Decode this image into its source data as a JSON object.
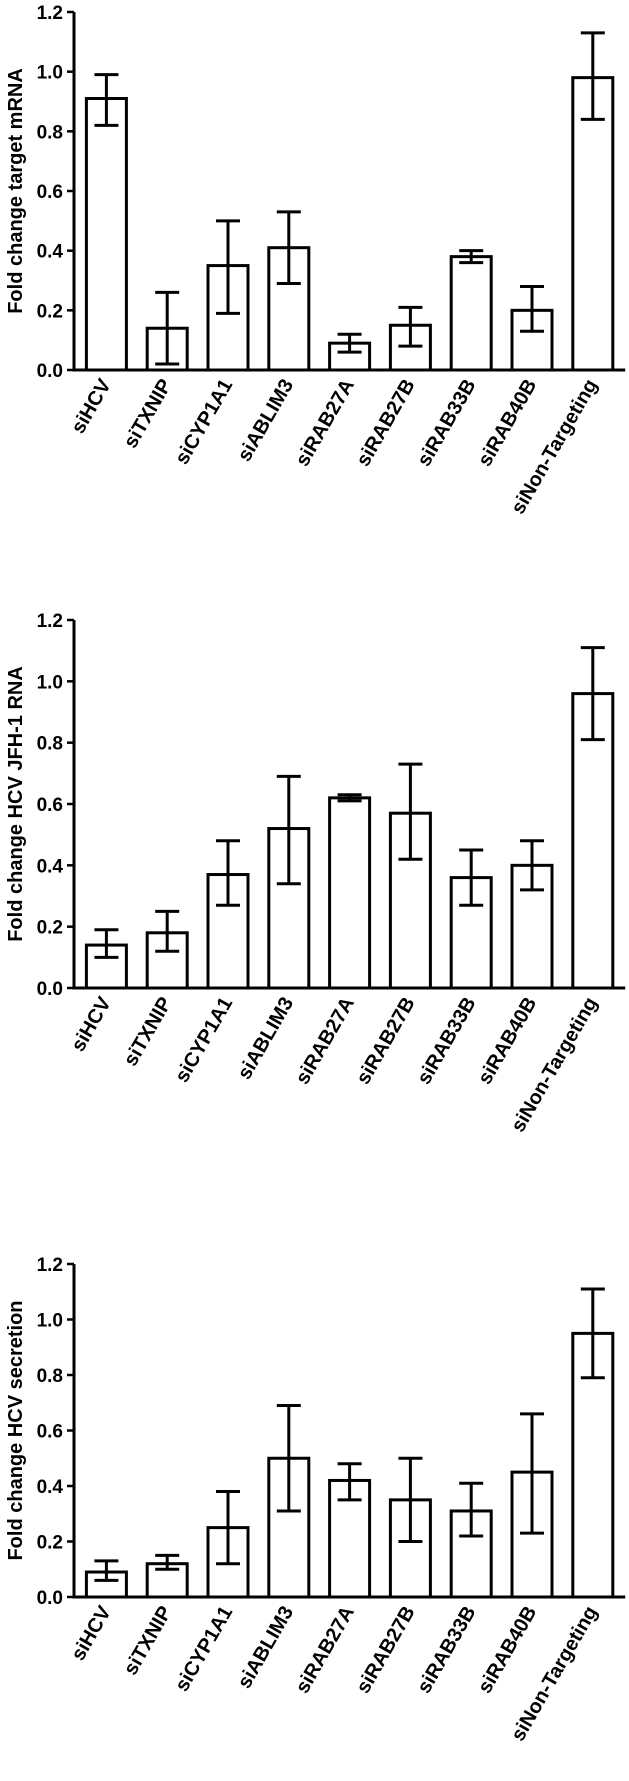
{
  "chart_data": [
    {
      "type": "bar",
      "ylabel": "Fold change target mRNA",
      "ylim": [
        0,
        1.2
      ],
      "yticks": [
        "0.0",
        "0.2",
        "0.4",
        "0.6",
        "0.8",
        "1.0",
        "1.2"
      ],
      "categories": [
        "siHCV",
        "siTXNIP",
        "siCYP1A1",
        "siABLIM3",
        "siRAB27A",
        "siRAB27B",
        "siRAB33B",
        "siRAB40B",
        "siNon-Targeting"
      ],
      "values": [
        0.91,
        0.14,
        0.35,
        0.41,
        0.09,
        0.15,
        0.38,
        0.2,
        0.98
      ],
      "error_low": [
        0.82,
        0.02,
        0.19,
        0.29,
        0.06,
        0.08,
        0.36,
        0.13,
        0.84
      ],
      "error_high": [
        0.99,
        0.26,
        0.5,
        0.53,
        0.12,
        0.21,
        0.4,
        0.28,
        1.13
      ],
      "grid": false
    },
    {
      "type": "bar",
      "ylabel": "Fold change HCV JFH-1 RNA",
      "ylim": [
        0,
        1.2
      ],
      "yticks": [
        "0.0",
        "0.2",
        "0.4",
        "0.6",
        "0.8",
        "1.0",
        "1.2"
      ],
      "categories": [
        "siHCV",
        "siTXNIP",
        "siCYP1A1",
        "siABLIM3",
        "siRAB27A",
        "siRAB27B",
        "siRAB33B",
        "siRAB40B",
        "siNon-Targeting"
      ],
      "values": [
        0.14,
        0.18,
        0.37,
        0.52,
        0.62,
        0.57,
        0.36,
        0.4,
        0.96
      ],
      "error_low": [
        0.1,
        0.12,
        0.27,
        0.34,
        0.61,
        0.42,
        0.27,
        0.32,
        0.81
      ],
      "error_high": [
        0.19,
        0.25,
        0.48,
        0.69,
        0.63,
        0.73,
        0.45,
        0.48,
        1.11
      ],
      "grid": false
    },
    {
      "type": "bar",
      "ylabel": "Fold change HCV secretion",
      "ylim": [
        0,
        1.2
      ],
      "yticks": [
        "0.0",
        "0.2",
        "0.4",
        "0.6",
        "0.8",
        "1.0",
        "1.2"
      ],
      "categories": [
        "siHCV",
        "siTXNIP",
        "siCYP1A1",
        "siABLIM3",
        "siRAB27A",
        "siRAB27B",
        "siRAB33B",
        "siRAB40B",
        "siNon-Targeting"
      ],
      "values": [
        0.09,
        0.12,
        0.25,
        0.5,
        0.42,
        0.35,
        0.31,
        0.45,
        0.95
      ],
      "error_low": [
        0.06,
        0.1,
        0.12,
        0.31,
        0.35,
        0.2,
        0.22,
        0.23,
        0.79
      ],
      "error_high": [
        0.13,
        0.15,
        0.38,
        0.69,
        0.48,
        0.5,
        0.41,
        0.66,
        1.11
      ],
      "grid": false
    }
  ]
}
